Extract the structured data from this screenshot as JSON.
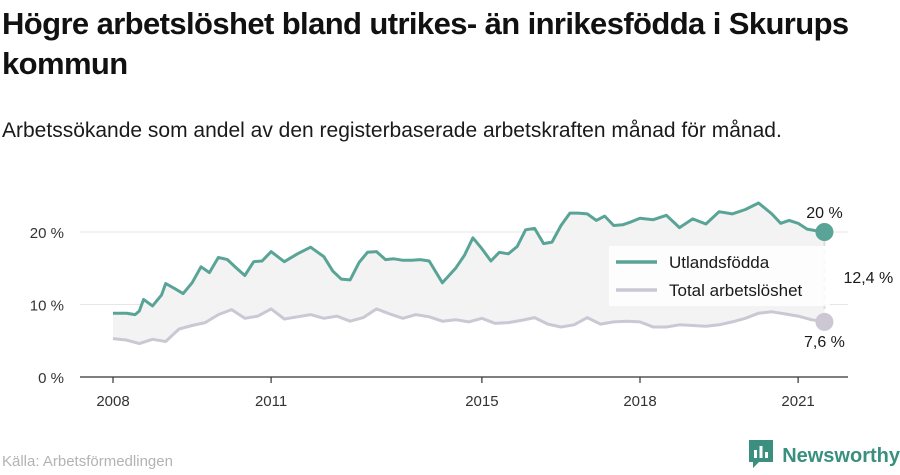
{
  "title": "Högre arbetslöshet bland utrikes- än inrikesfödda i Skurups kommun",
  "subtitle": "Arbetssökande som andel av den registerbaserade arbetskraften månad för månad.",
  "source": "Källa: Arbetsförmedlingen",
  "brand": "Newsworthy",
  "colors": {
    "foreign": "#5aa497",
    "total": "#cbc8d4",
    "band": "#f3f3f3",
    "axis": "#333333"
  },
  "chart_data": {
    "type": "line",
    "y_unit": "%",
    "ylim": [
      0,
      20
    ],
    "xlim": [
      2008,
      2022.2
    ],
    "y_ticks": [
      {
        "value": 0,
        "label": "0 %"
      },
      {
        "value": 10,
        "label": "10 %"
      },
      {
        "value": 20,
        "label": "20 %"
      }
    ],
    "x_ticks": [
      {
        "value": 2008,
        "label": "2008"
      },
      {
        "value": 2011,
        "label": "2011"
      },
      {
        "value": 2015,
        "label": "2015"
      },
      {
        "value": 2018,
        "label": "2018"
      },
      {
        "value": 2021,
        "label": "2021"
      }
    ],
    "grid": "horizontal",
    "legend_position": "right",
    "series": [
      {
        "name": "Utlandsfödda",
        "color": "#5aa497",
        "x": [
          2008.0,
          2008.25,
          2008.42,
          2008.5,
          2008.58,
          2008.75,
          2008.92,
          2009.0,
          2009.17,
          2009.33,
          2009.5,
          2009.67,
          2009.83,
          2010.0,
          2010.17,
          2010.33,
          2010.5,
          2010.67,
          2010.83,
          2011.0,
          2011.25,
          2011.5,
          2011.75,
          2012.0,
          2012.17,
          2012.33,
          2012.5,
          2012.67,
          2012.83,
          2013.0,
          2013.17,
          2013.33,
          2013.5,
          2013.67,
          2013.83,
          2014.0,
          2014.25,
          2014.5,
          2014.67,
          2014.83,
          2015.0,
          2015.17,
          2015.33,
          2015.5,
          2015.67,
          2015.83,
          2016.0,
          2016.17,
          2016.33,
          2016.5,
          2016.67,
          2016.83,
          2017.0,
          2017.17,
          2017.33,
          2017.5,
          2017.67,
          2017.83,
          2018.0,
          2018.25,
          2018.5,
          2018.75,
          2019.0,
          2019.25,
          2019.5,
          2019.75,
          2020.0,
          2020.25,
          2020.5,
          2020.67,
          2020.83,
          2021.0,
          2021.17,
          2021.33,
          2021.5
        ],
        "values": [
          8.8,
          8.8,
          8.6,
          9.1,
          10.7,
          9.8,
          11.3,
          12.9,
          12.2,
          11.5,
          13.0,
          15.2,
          14.4,
          16.5,
          16.2,
          15.1,
          14.0,
          15.9,
          16.0,
          17.3,
          15.9,
          17.0,
          17.9,
          16.6,
          14.6,
          13.5,
          13.4,
          15.8,
          17.2,
          17.3,
          16.2,
          16.3,
          16.1,
          16.1,
          16.2,
          16.0,
          13.0,
          15.0,
          16.8,
          19.2,
          17.7,
          16.0,
          17.2,
          17.0,
          18.0,
          20.3,
          20.5,
          18.4,
          18.6,
          20.9,
          22.6,
          22.6,
          22.5,
          21.6,
          22.2,
          20.9,
          21.0,
          21.4,
          21.9,
          21.7,
          22.3,
          20.6,
          21.8,
          21.1,
          22.8,
          22.5,
          23.1,
          24.0,
          22.5,
          21.2,
          21.6,
          21.2,
          20.4,
          20.2,
          20.0
        ]
      },
      {
        "name": "Total arbetslöshet",
        "color": "#cbc8d4",
        "x": [
          2008.0,
          2008.25,
          2008.5,
          2008.75,
          2009.0,
          2009.25,
          2009.5,
          2009.75,
          2010.0,
          2010.25,
          2010.5,
          2010.75,
          2011.0,
          2011.25,
          2011.5,
          2011.75,
          2012.0,
          2012.25,
          2012.5,
          2012.75,
          2013.0,
          2013.25,
          2013.5,
          2013.75,
          2014.0,
          2014.25,
          2014.5,
          2014.75,
          2015.0,
          2015.25,
          2015.5,
          2015.75,
          2016.0,
          2016.25,
          2016.5,
          2016.75,
          2017.0,
          2017.25,
          2017.5,
          2017.75,
          2018.0,
          2018.25,
          2018.5,
          2018.75,
          2019.0,
          2019.25,
          2019.5,
          2019.75,
          2020.0,
          2020.25,
          2020.5,
          2020.75,
          2021.0,
          2021.25,
          2021.5
        ],
        "values": [
          5.3,
          5.1,
          4.6,
          5.2,
          4.9,
          6.6,
          7.1,
          7.5,
          8.6,
          9.3,
          8.1,
          8.4,
          9.4,
          8.0,
          8.3,
          8.6,
          8.1,
          8.4,
          7.7,
          8.2,
          9.4,
          8.7,
          8.1,
          8.6,
          8.3,
          7.7,
          7.9,
          7.6,
          8.1,
          7.4,
          7.5,
          7.8,
          8.2,
          7.3,
          6.9,
          7.2,
          8.2,
          7.3,
          7.6,
          7.7,
          7.6,
          6.9,
          6.9,
          7.2,
          7.1,
          7.0,
          7.2,
          7.6,
          8.1,
          8.8,
          9.0,
          8.7,
          8.4,
          7.9,
          7.6
        ]
      }
    ],
    "end_labels": {
      "foreign": "20 %",
      "total": "7,6 %",
      "gap": "12,4 %"
    }
  }
}
